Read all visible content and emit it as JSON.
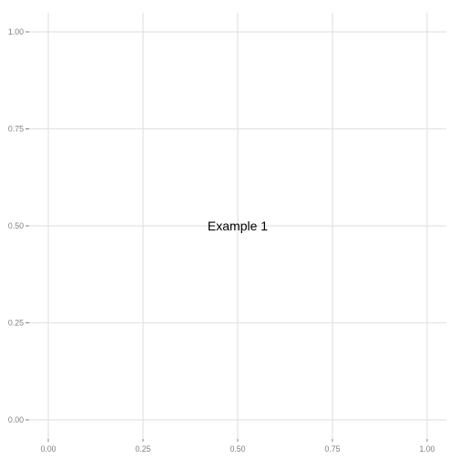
{
  "chart_data": {
    "type": "scatter",
    "title": "",
    "xlabel": "",
    "ylabel": "",
    "xlim": [
      0,
      1
    ],
    "ylim": [
      0,
      1
    ],
    "grid": true,
    "x_ticks": [
      0.0,
      0.25,
      0.5,
      0.75,
      1.0
    ],
    "y_ticks": [
      0.0,
      0.25,
      0.5,
      0.75,
      1.0
    ],
    "x_tick_labels": [
      "0.00",
      "0.25",
      "0.50",
      "0.75",
      "1.00"
    ],
    "y_tick_labels": [
      "0.00",
      "0.25",
      "0.50",
      "0.75",
      "1.00"
    ],
    "annotations": [
      {
        "text": "Example 1",
        "x": 0.5,
        "y": 0.5
      }
    ],
    "series": []
  },
  "colors": {
    "background": "#ffffff",
    "grid": "#e3e3e3",
    "tick_text": "#7f7f7f",
    "annotation_text": "#000000"
  }
}
